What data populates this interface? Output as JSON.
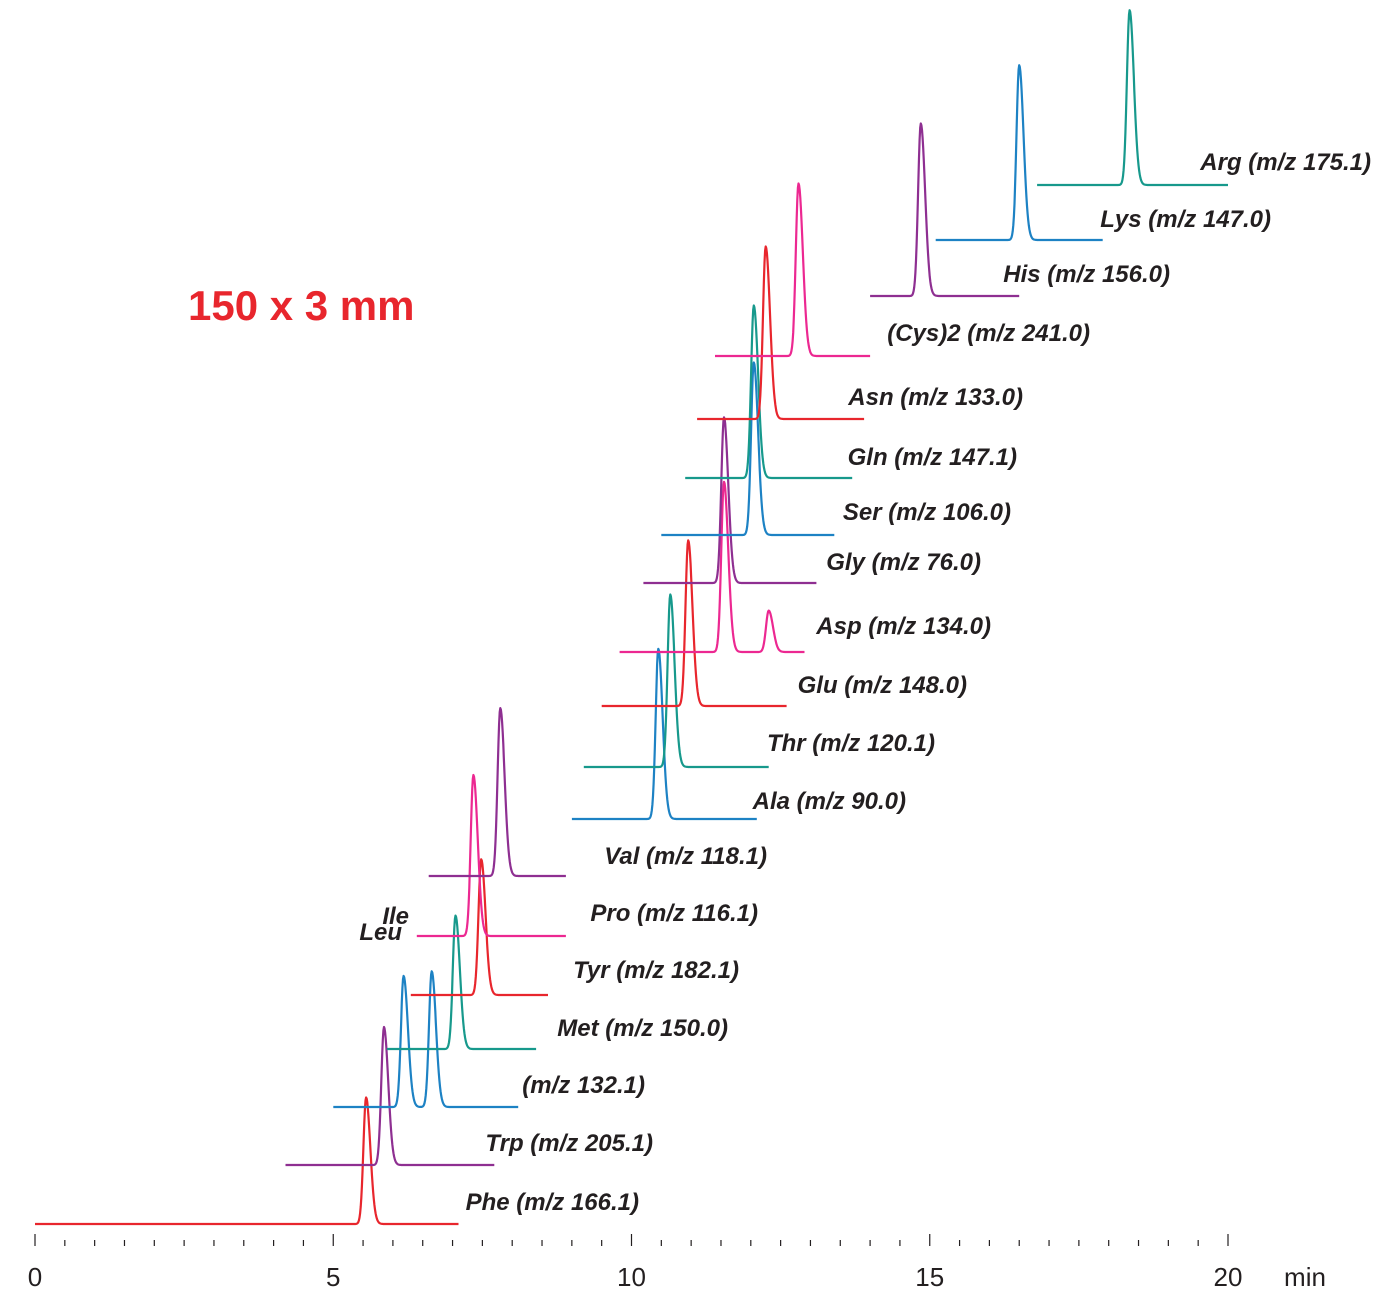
{
  "column_label": "150 x 3 mm",
  "chart_data": {
    "type": "line",
    "title": "",
    "xlabel": "min",
    "ylabel": "",
    "xlim": [
      0,
      21
    ],
    "x_ticks": [
      "0",
      "5",
      "10",
      "15",
      "20"
    ],
    "x_unit_label": "min",
    "grid": false,
    "label_color": "#231f20",
    "stacking": "vertically offset traces (stacked chromatograms)",
    "series": [
      {
        "name": "Phe (m/z 166.1)",
        "color": "#e8262d",
        "x_start": 0.0,
        "x_end": 7.1,
        "peaks": [
          {
            "rt": 5.55,
            "height": 0.55
          }
        ]
      },
      {
        "name": "Trp (m/z 205.1)",
        "color": "#8e2f91",
        "x_start": 4.2,
        "x_end": 7.7,
        "peaks": [
          {
            "rt": 5.85,
            "height": 0.6
          }
        ]
      },
      {
        "name": "(m/z 132.1)",
        "color": "#1d82c4",
        "x_start": 5.0,
        "x_end": 8.1,
        "peaks": [
          {
            "rt": 6.18,
            "height": 0.57,
            "label": "Leu"
          },
          {
            "rt": 6.65,
            "height": 0.59,
            "label": "Ile"
          }
        ]
      },
      {
        "name": "Met (m/z 150.0)",
        "color": "#17998c",
        "x_start": 5.9,
        "x_end": 8.4,
        "peaks": [
          {
            "rt": 7.05,
            "height": 0.58
          }
        ]
      },
      {
        "name": "Tyr (m/z 182.1)",
        "color": "#e8262d",
        "x_start": 6.3,
        "x_end": 8.6,
        "peaks": [
          {
            "rt": 7.48,
            "height": 0.59
          }
        ]
      },
      {
        "name": "Pro (m/z 116.1)",
        "color": "#ec2891",
        "x_start": 6.4,
        "x_end": 8.9,
        "peaks": [
          {
            "rt": 7.35,
            "height": 0.7
          }
        ]
      },
      {
        "name": "Val (m/z 118.1)",
        "color": "#8e2f91",
        "x_start": 6.6,
        "x_end": 8.9,
        "peaks": [
          {
            "rt": 7.8,
            "height": 0.73
          }
        ]
      },
      {
        "name": "Ala (m/z 90.0)",
        "color": "#1d82c4",
        "x_start": 9.0,
        "x_end": 12.1,
        "peaks": [
          {
            "rt": 10.45,
            "height": 0.74
          }
        ]
      },
      {
        "name": "Thr (m/z 120.1)",
        "color": "#17998c",
        "x_start": 9.2,
        "x_end": 12.3,
        "peaks": [
          {
            "rt": 10.65,
            "height": 0.75
          }
        ]
      },
      {
        "name": "Glu (m/z 148.0)",
        "color": "#e8262d",
        "x_start": 9.5,
        "x_end": 12.6,
        "peaks": [
          {
            "rt": 10.95,
            "height": 0.72
          }
        ]
      },
      {
        "name": "Asp (m/z 134.0)",
        "color": "#ec2891",
        "x_start": 9.8,
        "x_end": 12.9,
        "peaks": [
          {
            "rt": 11.55,
            "height": 0.74
          },
          {
            "rt": 12.3,
            "height": 0.18
          }
        ]
      },
      {
        "name": "Gly (m/z 76.0)",
        "color": "#8e2f91",
        "x_start": 10.2,
        "x_end": 13.1,
        "peaks": [
          {
            "rt": 11.55,
            "height": 0.72
          }
        ]
      },
      {
        "name": "Ser (m/z 106.0)",
        "color": "#1d82c4",
        "x_start": 10.5,
        "x_end": 13.4,
        "peaks": [
          {
            "rt": 12.05,
            "height": 0.75
          }
        ]
      },
      {
        "name": "Gln (m/z 147.1)",
        "color": "#17998c",
        "x_start": 10.9,
        "x_end": 13.7,
        "peaks": [
          {
            "rt": 12.05,
            "height": 0.75
          }
        ]
      },
      {
        "name": "Asn (m/z 133.0)",
        "color": "#e8262d",
        "x_start": 11.1,
        "x_end": 13.9,
        "peaks": [
          {
            "rt": 12.25,
            "height": 0.75
          }
        ]
      },
      {
        "name": "(Cys)2 (m/z 241.0)",
        "color": "#ec2891",
        "x_start": 11.4,
        "x_end": 14.0,
        "peaks": [
          {
            "rt": 12.8,
            "height": 0.75
          }
        ]
      },
      {
        "name": "His (m/z 156.0)",
        "color": "#8e2f91",
        "x_start": 14.0,
        "x_end": 16.5,
        "peaks": [
          {
            "rt": 14.85,
            "height": 0.75
          }
        ]
      },
      {
        "name": "Lys (m/z 147.0)",
        "color": "#1d82c4",
        "x_start": 15.1,
        "x_end": 17.9,
        "peaks": [
          {
            "rt": 16.5,
            "height": 0.76
          }
        ]
      },
      {
        "name": "Arg (m/z 175.1)",
        "color": "#17998c",
        "x_start": 16.8,
        "x_end": 20.0,
        "peaks": [
          {
            "rt": 18.35,
            "height": 0.76
          }
        ]
      }
    ],
    "annotations": [
      "Leu",
      "Ile"
    ]
  }
}
